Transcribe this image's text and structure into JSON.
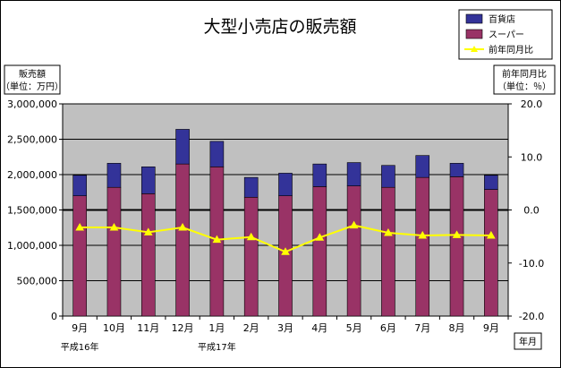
{
  "chart_data": {
    "type": "bar",
    "title": "大型小売店の販売額",
    "left_axis_label": [
      "販売額",
      "（単位：万円）"
    ],
    "right_axis_label": [
      "前年同月比",
      "（単位：％）"
    ],
    "x_axis_label": "年月",
    "categories": [
      "9月",
      "10月",
      "11月",
      "12月",
      "1月",
      "2月",
      "3月",
      "4月",
      "5月",
      "6月",
      "7月",
      "8月",
      "9月"
    ],
    "year_labels": [
      {
        "text": "平成16年",
        "category_index": 0
      },
      {
        "text": "平成17年",
        "category_index": 4
      }
    ],
    "stacked": true,
    "series": [
      {
        "name": "スーパー",
        "color": "#993366",
        "axis": "left",
        "values": [
          1700000,
          1820000,
          1730000,
          2150000,
          2110000,
          1680000,
          1700000,
          1830000,
          1840000,
          1820000,
          1960000,
          1970000,
          1790000
        ]
      },
      {
        "name": "百貨店",
        "color": "#333399",
        "axis": "left",
        "values": [
          290000,
          340000,
          380000,
          490000,
          360000,
          280000,
          320000,
          320000,
          330000,
          310000,
          310000,
          190000,
          200000
        ]
      },
      {
        "name": "前年同月比",
        "color": "#ffff00",
        "axis": "right",
        "type": "line",
        "values": [
          -3.3,
          -3.3,
          -4.2,
          -3.3,
          -5.6,
          -5.1,
          -7.9,
          -5.2,
          -2.9,
          -4.3,
          -4.8,
          -4.7,
          -4.8
        ]
      }
    ],
    "legend_order": [
      "百貨店",
      "スーパー",
      "前年同月比"
    ],
    "legend_position": "top-right",
    "left_ylim": [
      0,
      3000000
    ],
    "left_ticks": [
      0,
      500000,
      1000000,
      1500000,
      2000000,
      2500000,
      3000000
    ],
    "left_tick_labels": [
      "0",
      "500,000",
      "1,000,000",
      "1,500,000",
      "2,000,000",
      "2,500,000",
      "3,000,000"
    ],
    "right_ylim": [
      -20,
      20
    ],
    "right_ticks": [
      -20,
      -10,
      0,
      10,
      20
    ],
    "right_tick_labels": [
      "-20.0",
      "-10.0",
      "0.0",
      "10.0",
      "20.0"
    ],
    "grid": true,
    "plot_background": "#c0c0c0"
  }
}
